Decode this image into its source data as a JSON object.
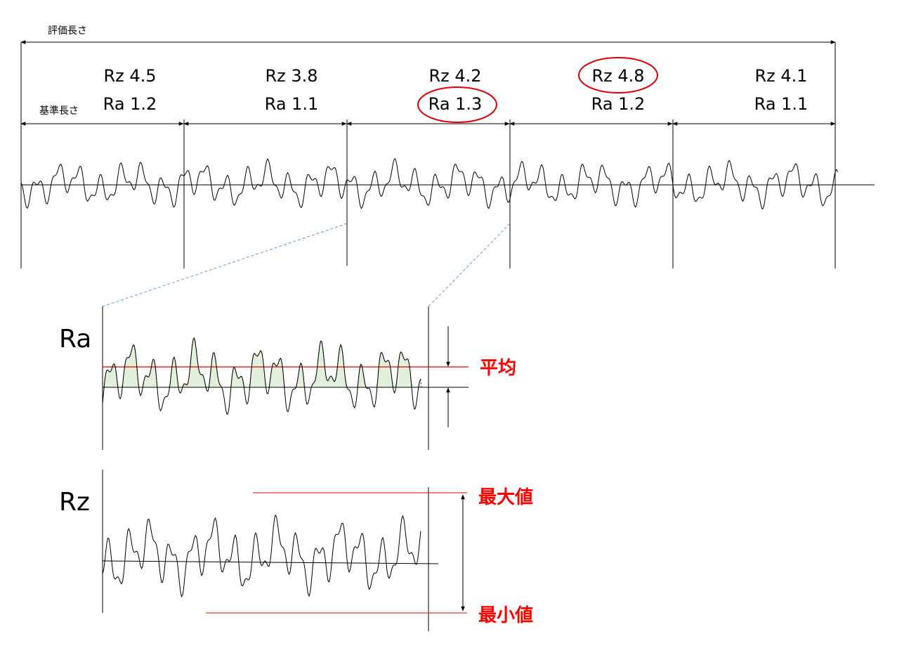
{
  "evaluation_length_label": "評価長さ",
  "reference_length_label": "基準長さ",
  "segments": [
    {
      "rz": "Rz 4.5",
      "ra": "Ra 1.2",
      "rz_highlight": false,
      "ra_highlight": false
    },
    {
      "rz": "Rz 3.8",
      "ra": "Ra 1.1",
      "rz_highlight": false,
      "ra_highlight": false
    },
    {
      "rz": "Rz 4.2",
      "ra": "Ra 1.3",
      "rz_highlight": false,
      "ra_highlight": true
    },
    {
      "rz": "Rz 4.8",
      "ra": "Ra 1.2",
      "rz_highlight": true,
      "ra_highlight": false
    },
    {
      "rz": "Rz 4.1",
      "ra": "Ra 1.1",
      "rz_highlight": false,
      "ra_highlight": false
    }
  ],
  "ra_panel": {
    "title": "Ra",
    "mean_label": "平均"
  },
  "rz_panel": {
    "title": "Rz",
    "max_label": "最大値",
    "min_label": "最小値"
  },
  "colors": {
    "highlight": "#e00000",
    "line": "#000000",
    "fill": "#e2efda",
    "dashed": "#5b9bd5"
  }
}
